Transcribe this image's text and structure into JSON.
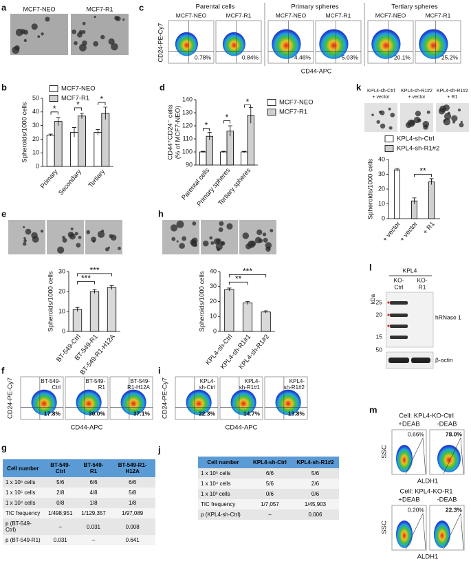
{
  "panel_labels": [
    "a",
    "b",
    "c",
    "d",
    "e",
    "f",
    "g",
    "h",
    "i",
    "j",
    "k",
    "l",
    "m"
  ],
  "a": {
    "images": [
      "MCF7-NEO",
      "MCF7-R1"
    ]
  },
  "c": {
    "groups": [
      "Parental cells",
      "Primary spheres",
      "Tertiary spheres"
    ],
    "plots": [
      {
        "name": "MCF7-NEO",
        "percent": "0.78%"
      },
      {
        "name": "MCF7-R1",
        "percent": "0.84%"
      },
      {
        "name": "MCF7-NEO",
        "percent": "4.46%"
      },
      {
        "name": "MCF7-R1",
        "percent": "5.03%"
      },
      {
        "name": "MCF7-NEO",
        "percent": "20.1%"
      },
      {
        "name": "MCF7-R1",
        "percent": "25.2%"
      }
    ],
    "ylabel": "CD24-PE-Cy7",
    "xlabel": "CD44-APC"
  },
  "k_images": [
    [
      "KPL4-sh-Ctrl",
      "+ vector"
    ],
    [
      "KPL4-sh-R1#2",
      "+ vector"
    ],
    [
      "KPL4-sh-R1#2",
      "+ R1"
    ]
  ],
  "chart_data": [
    {
      "type": "bar",
      "ylabel": [
        "Spheroids/1000 cells"
      ],
      "categories": [
        "Primary",
        "Secondary",
        "Tertiary"
      ],
      "series": [
        {
          "name": "MCF7-NEO",
          "color": "#ffffff",
          "values": [
            23,
            25,
            25
          ],
          "errors": [
            0.7,
            3.5,
            2
          ]
        },
        {
          "name": "MCF7-R1",
          "color": "#d0d0d0",
          "values": [
            33,
            37,
            39
          ],
          "errors": [
            3,
            2,
            4.5
          ]
        }
      ],
      "ylim": [
        0,
        50
      ],
      "yticks": [
        0,
        10,
        20,
        30,
        40,
        50
      ],
      "legend": "upper left",
      "annotations": [
        "*",
        "*",
        "*"
      ]
    },
    {
      "type": "bar",
      "ylabel": [
        "CD44⁺CD24⁻ cells",
        "(% of MCF7-NEO)"
      ],
      "categories": [
        "Parental cells",
        "Primary spheres",
        "Tertiary spheres"
      ],
      "series": [
        {
          "name": "MCF7-NEO",
          "color": "#ffffff",
          "values": [
            100,
            100,
            100
          ],
          "errors": [
            0.5,
            0.5,
            0.5
          ]
        },
        {
          "name": "MCF7-R1",
          "color": "#d0d0d0",
          "values": [
            112,
            116,
            128
          ],
          "errors": [
            3,
            4,
            6
          ]
        }
      ],
      "ylim": [
        90,
        140
      ],
      "yticks": [
        90,
        100,
        110,
        120,
        130,
        140
      ],
      "legend": "right",
      "annotations": [
        "*",
        "*",
        "*"
      ]
    },
    {
      "type": "bar",
      "ylabel": [
        "Spheroids/1000 cells"
      ],
      "categories": [
        "+ vector",
        "+ vector",
        "+ R1"
      ],
      "series": [
        {
          "name": "KPL4-sh-Ctrl",
          "color": "#ffffff",
          "values": [
            33,
            null,
            null
          ],
          "errors": [
            1,
            null,
            null
          ]
        },
        {
          "name": "KPL4-sh-R1#2",
          "color": "#d0d0d0",
          "values": [
            null,
            12,
            25
          ],
          "errors": [
            null,
            2,
            2
          ]
        }
      ],
      "ylim": [
        0,
        40
      ],
      "yticks": [
        0,
        10,
        20,
        30,
        40
      ],
      "legend": "top",
      "annotations": [
        "**"
      ]
    },
    {
      "type": "bar",
      "ylabel": [
        "Spheroids/1000 cells"
      ],
      "categories": [
        "BT-549-Ctrl",
        "BT-549-R1",
        "BT-549-R1-H12A"
      ],
      "values": [
        11,
        20,
        22
      ],
      "errors": [
        1,
        1,
        1
      ],
      "color": "#d9d9d9",
      "ylim": [
        0,
        30
      ],
      "yticks": [
        0,
        10,
        20,
        30
      ],
      "annotations": [
        "***",
        "***"
      ]
    },
    {
      "type": "bar",
      "ylabel": [
        "Spheroids/1000 cells"
      ],
      "categories": [
        "KPL4-sh-Ctrl",
        "KPL4-sh-R1#1",
        "KPL4-sh-R1#2"
      ],
      "values": [
        28,
        19,
        13
      ],
      "errors": [
        1,
        1,
        0.8
      ],
      "color": "#d9d9d9",
      "ylim": [
        0,
        40
      ],
      "yticks": [
        0,
        10,
        20,
        30,
        40
      ],
      "annotations": [
        "**",
        "***"
      ]
    }
  ],
  "f": {
    "plots": [
      {
        "name": [
          "BT-549-",
          "Ctrl"
        ],
        "percent": "17.8%"
      },
      {
        "name": [
          "BT-549-",
          "R1"
        ],
        "percent": "30.0%"
      },
      {
        "name": [
          "BT-549-",
          "R1-H12A"
        ],
        "percent": "37.1%"
      }
    ],
    "ylabel": "CD24-PE-Cy7",
    "xlabel": "CD44-APC"
  },
  "i": {
    "plots": [
      {
        "name": [
          "KPL4-",
          "sh-Ctrl"
        ],
        "percent": "22.3%"
      },
      {
        "name": [
          "KPL4-",
          "sh-R1#1"
        ],
        "percent": "14.7%"
      },
      {
        "name": [
          "KPL4-",
          "sh-R1#2"
        ],
        "percent": "13.8%"
      }
    ],
    "ylabel": "CD24-PE-Cy7",
    "xlabel": "CD44-APC"
  },
  "l": {
    "group": "KPL4",
    "unit": "kDa",
    "lanes": [
      [
        "KO-",
        "Ctrl"
      ],
      [
        "KO-",
        "R1"
      ]
    ],
    "markers": [
      "25",
      "20",
      "15",
      "50"
    ],
    "bands": [
      "hRNase 1",
      "β-actin"
    ]
  },
  "m": {
    "panels": [
      {
        "cell": "Cell: KPL4-KO-Ctrl",
        "conditions": [
          "+DEAB",
          "-DEAB"
        ],
        "percents": [
          "0.66%",
          "78.0%"
        ]
      },
      {
        "cell": "Cell: KPL4-KO-R1",
        "conditions": [
          "+DEAB",
          "-DEAB"
        ],
        "percents": [
          "0.20%",
          "22.3%"
        ]
      }
    ],
    "ylabel": "SSC",
    "xlabel": "ALDH1"
  },
  "g": {
    "header": [
      "Cell number",
      "BT-549-Ctrl",
      "BT-549-R1",
      "BT-549-R1-H12A"
    ],
    "rows": [
      [
        "1 x 10⁶ cells",
        "5/6",
        "6/6",
        "6/6"
      ],
      [
        "1 x 10⁵ cells",
        "2/8",
        "4/8",
        "5/8"
      ],
      [
        "1 x 10⁴ cells",
        "0/8",
        "1/8",
        "1/8"
      ],
      [
        "TIC frequency",
        "1/498,951",
        "1/129,357",
        "1/97,089"
      ],
      [
        "p (BT-549-Ctrl)",
        "–",
        "0.031",
        "0.008"
      ],
      [
        "p (BT-549-R1)",
        "0.031",
        "–",
        "0.641"
      ]
    ]
  },
  "j": {
    "header": [
      "Cell number",
      "KPL4-sh-Ctrl",
      "KPL4-sh-R1#2"
    ],
    "rows": [
      [
        "1 x 10⁵ cells",
        "6/6",
        "5/6"
      ],
      [
        "1 x 10⁴ cells",
        "5/6",
        "2/6"
      ],
      [
        "1 x 10³ cells",
        "0/6",
        "0/6"
      ],
      [
        "TIC frequency",
        "1/7,057",
        "1/45,903"
      ],
      [
        "p (KPL4-sh-Ctrl)",
        "–",
        "0.006"
      ]
    ]
  }
}
